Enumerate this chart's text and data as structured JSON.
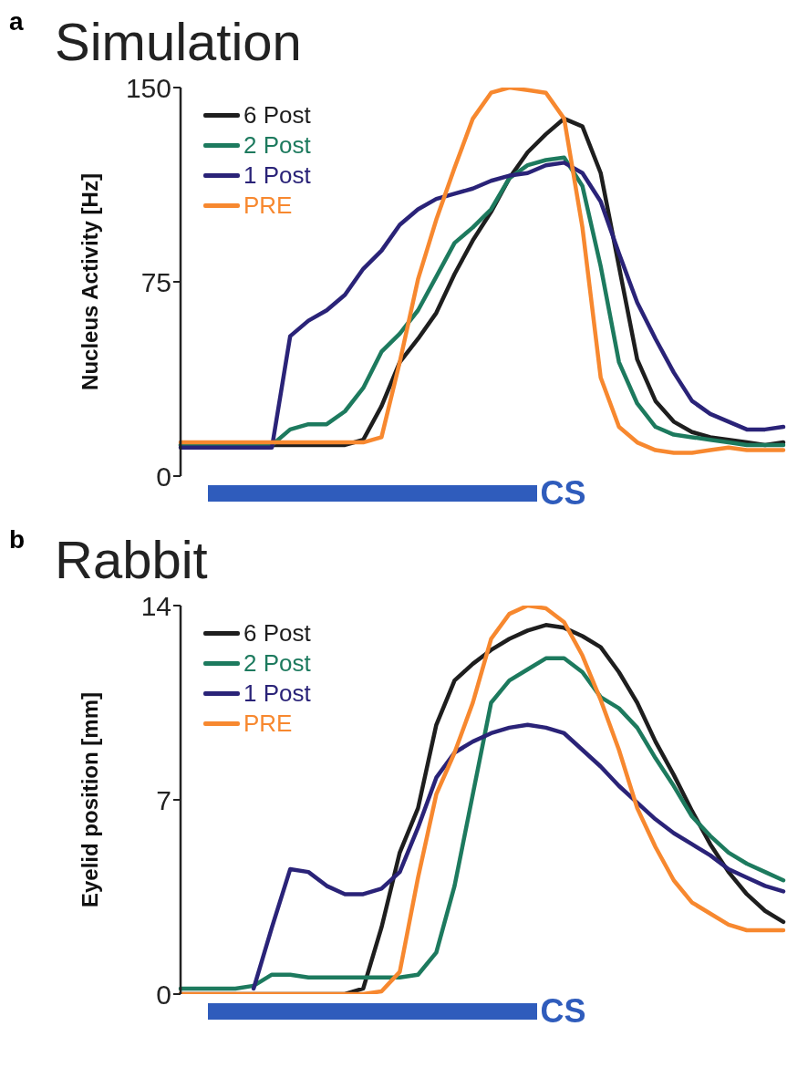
{
  "chart_data": [
    {
      "type": "line",
      "title": "Simulation",
      "ylabel": "Nucleus Activity [Hz]",
      "annotations": [
        "a",
        "CS"
      ],
      "categories": [
        null,
        null,
        null,
        null,
        null,
        null,
        null,
        null,
        null,
        null,
        null,
        null,
        null,
        null,
        null,
        null,
        null,
        null,
        null,
        null,
        null,
        null,
        null,
        null,
        null,
        null,
        null,
        null,
        null,
        null,
        null,
        null,
        null,
        null
      ],
      "ylim": [
        0,
        150
      ],
      "yticks": [
        0,
        75,
        150
      ],
      "grid": false,
      "legend": "top left",
      "tick_labels": "y",
      "marker": "none",
      "line_style": "solid",
      "series": [
        {
          "name": "6 Post",
          "color": "#1e1e1e",
          "values": [
            12,
            12,
            12,
            12,
            12,
            12,
            12,
            12,
            12,
            12,
            14,
            27,
            44,
            53,
            63,
            78,
            91,
            102,
            115,
            125,
            132,
            138,
            135,
            117,
            81,
            45,
            29,
            21,
            17,
            15,
            14,
            13,
            12,
            13
          ]
        },
        {
          "name": "2 Post",
          "color": "#1d7a5e",
          "values": [
            12,
            12,
            12,
            12,
            12,
            12,
            18,
            20,
            20,
            25,
            34,
            48,
            55,
            64,
            77,
            90,
            96,
            103,
            115,
            120,
            122,
            123,
            112,
            81,
            44,
            28,
            19,
            16,
            15,
            14,
            13,
            12,
            12,
            12
          ]
        },
        {
          "name": "1 Post",
          "color": "#2a2378",
          "values": [
            11,
            11,
            11,
            11,
            11,
            11,
            54,
            60,
            64,
            70,
            80,
            87,
            97,
            103,
            107,
            109,
            111,
            114,
            116,
            117,
            120,
            121,
            117,
            106,
            86,
            67,
            53,
            40,
            29,
            24,
            21,
            18,
            18,
            19
          ]
        },
        {
          "name": "PRE",
          "color": "#f7882f",
          "values": [
            13,
            13,
            13,
            13,
            13,
            13,
            13,
            13,
            13,
            13,
            13,
            15,
            44,
            76,
            99,
            119,
            138,
            148,
            150,
            149,
            148,
            138,
            96,
            38,
            19,
            13,
            10,
            9,
            9,
            10,
            11,
            10,
            10,
            10
          ]
        }
      ]
    },
    {
      "type": "line",
      "title": "Rabbit",
      "ylabel": "Eyelid position  [mm]",
      "annotations": [
        "b",
        "CS"
      ],
      "categories": [
        null,
        null,
        null,
        null,
        null,
        null,
        null,
        null,
        null,
        null,
        null,
        null,
        null,
        null,
        null,
        null,
        null,
        null,
        null,
        null,
        null,
        null,
        null,
        null,
        null,
        null,
        null,
        null,
        null,
        null,
        null,
        null,
        null,
        null
      ],
      "ylim": [
        0,
        14
      ],
      "yticks": [
        0,
        7,
        14
      ],
      "grid": false,
      "legend": "top left",
      "tick_labels": "y",
      "marker": "none",
      "line_style": "solid",
      "series": [
        {
          "name": "6 Post",
          "color": "#1e1e1e",
          "values": [
            0,
            0,
            0,
            0,
            0,
            0,
            0,
            0,
            0,
            0,
            0.2,
            2.4,
            5.1,
            6.7,
            9.7,
            11.3,
            11.9,
            12.4,
            12.8,
            13.1,
            13.3,
            13.2,
            12.9,
            12.5,
            11.6,
            10.5,
            9.1,
            7.9,
            6.6,
            5.4,
            4.4,
            3.6,
            3.0,
            2.6
          ]
        },
        {
          "name": "2 Post",
          "color": "#1d7a5e",
          "values": [
            0.2,
            0.2,
            0.2,
            0.2,
            0.3,
            0.7,
            0.7,
            0.6,
            0.6,
            0.6,
            0.6,
            0.6,
            0.6,
            0.7,
            1.5,
            3.9,
            7.2,
            10.5,
            11.3,
            11.7,
            12.1,
            12.1,
            11.6,
            10.7,
            10.3,
            9.6,
            8.5,
            7.5,
            6.4,
            5.7,
            5.1,
            4.7,
            4.4,
            4.1
          ]
        },
        {
          "name": "1 Post",
          "color": "#2a2378",
          "values": [
            null,
            null,
            null,
            null,
            0.2,
            2.4,
            4.5,
            4.4,
            3.9,
            3.6,
            3.6,
            3.8,
            4.4,
            6.0,
            7.8,
            8.7,
            9.1,
            9.4,
            9.6,
            9.7,
            9.6,
            9.4,
            8.8,
            8.2,
            7.5,
            6.9,
            6.3,
            5.8,
            5.4,
            5.0,
            4.5,
            4.2,
            3.9,
            3.7
          ]
        },
        {
          "name": "PRE",
          "color": "#f7882f",
          "values": [
            0,
            0,
            0,
            0,
            0,
            0,
            0,
            0,
            0,
            0,
            0,
            0.1,
            0.8,
            4.2,
            7.2,
            8.7,
            10.5,
            12.8,
            13.7,
            14.0,
            13.9,
            13.4,
            12.2,
            10.6,
            8.8,
            6.7,
            5.3,
            4.1,
            3.3,
            2.9,
            2.5,
            2.3,
            2.3,
            2.3
          ]
        }
      ]
    }
  ]
}
